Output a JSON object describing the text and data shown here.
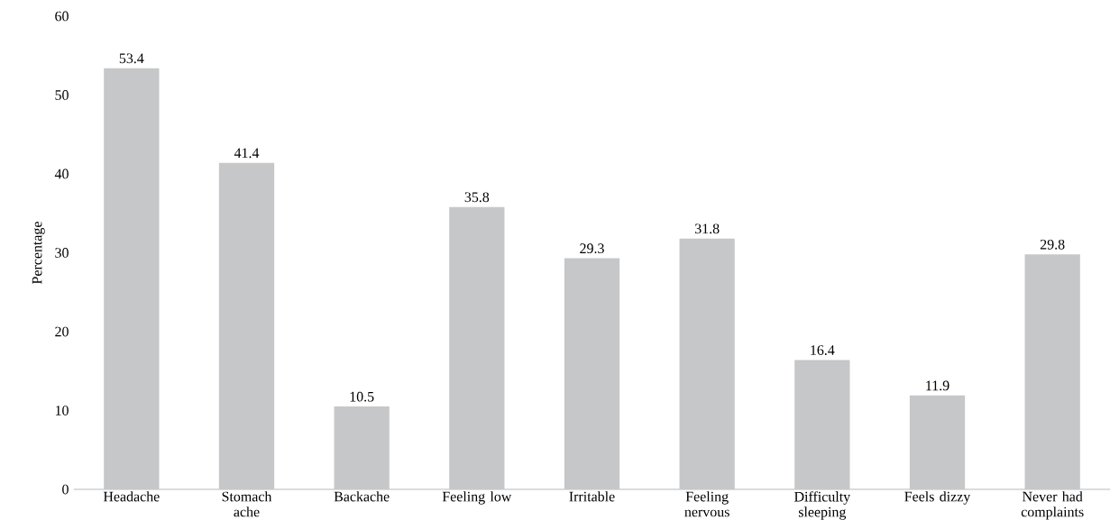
{
  "chart_data": {
    "type": "bar",
    "ylabel": "Percentage",
    "categories": [
      "Headache",
      "Stomach ache",
      "Backache",
      "Feeling low",
      "Irritable",
      "Feeling nervous",
      "Difficulty sleeping",
      "Feels dizzy",
      "Never had complaints"
    ],
    "values": [
      53.4,
      41.4,
      10.5,
      35.8,
      29.3,
      31.8,
      16.4,
      11.9,
      29.8
    ],
    "color": "#c6c7c9",
    "ylim": [
      0,
      60
    ],
    "yticks": [
      0,
      10,
      20,
      30,
      40,
      50,
      60
    ],
    "data_labels": true,
    "grid": false
  }
}
